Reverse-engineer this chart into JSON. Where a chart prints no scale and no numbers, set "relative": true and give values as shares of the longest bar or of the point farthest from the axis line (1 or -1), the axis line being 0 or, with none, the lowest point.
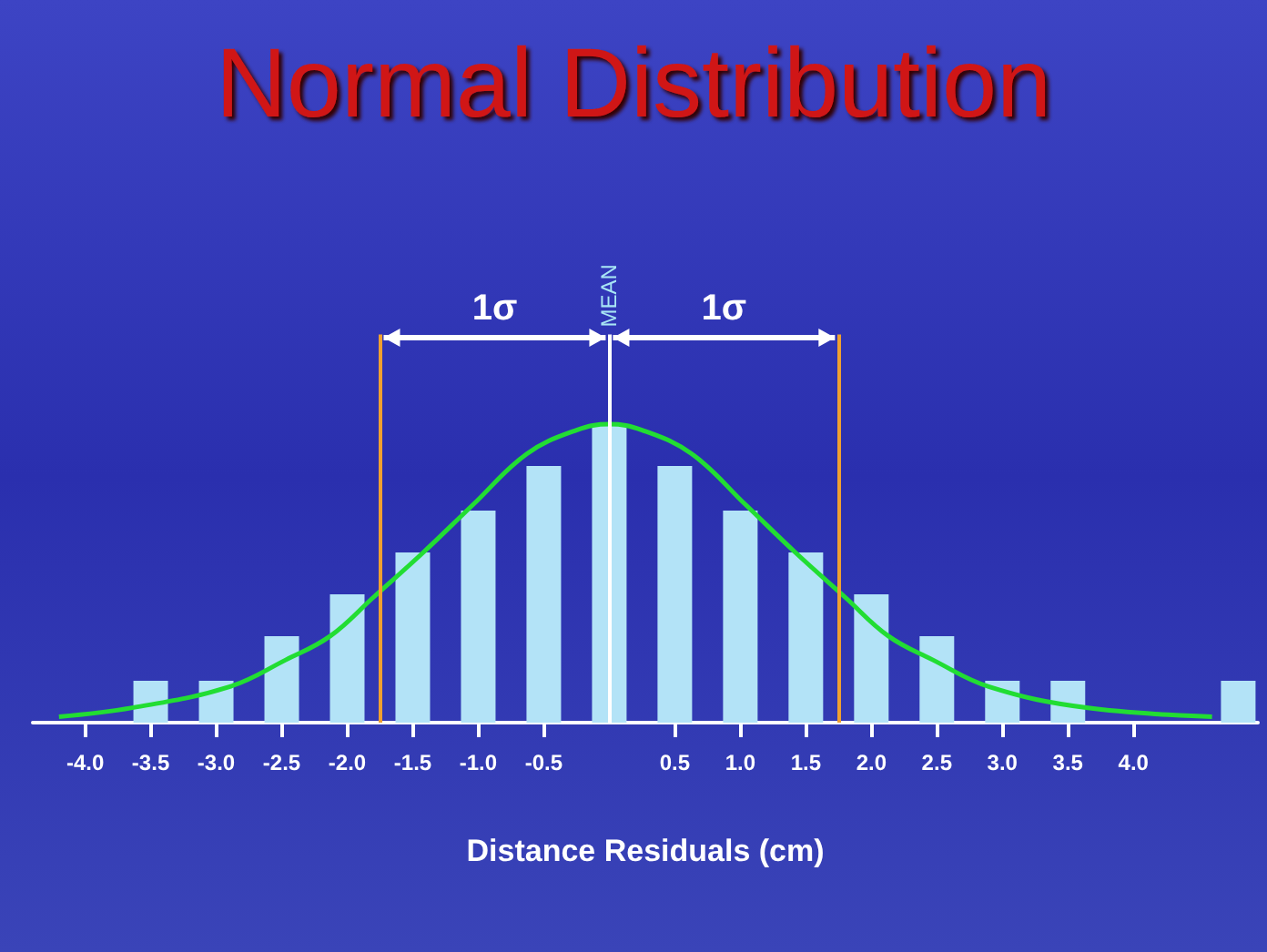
{
  "chart_data": {
    "type": "bar",
    "title": "Normal Distribution",
    "xlabel": "Distance Residuals (cm)",
    "relative": true,
    "xlim": [
      -4.4,
      4.95
    ],
    "xticks": [
      {
        "value": -4,
        "label": "-4.0"
      },
      {
        "value": -3.5,
        "label": "-3.5"
      },
      {
        "value": -3,
        "label": "-3.0"
      },
      {
        "value": -2.5,
        "label": "-2.5"
      },
      {
        "value": -2,
        "label": "-2.0"
      },
      {
        "value": -1.5,
        "label": "-1.5"
      },
      {
        "value": -1,
        "label": "-1.0"
      },
      {
        "value": -0.5,
        "label": "-0.5"
      },
      {
        "value": 0.5,
        "label": "0.5"
      },
      {
        "value": 1,
        "label": "1.0"
      },
      {
        "value": 1.5,
        "label": "1.5"
      },
      {
        "value": 2,
        "label": "2.0"
      },
      {
        "value": 2.5,
        "label": "2.5"
      },
      {
        "value": 3,
        "label": "3.0"
      },
      {
        "value": 3.5,
        "label": "3.5"
      },
      {
        "value": 4,
        "label": "4.0"
      }
    ],
    "series": [
      {
        "color": "#b3e3f7",
        "x": [
          -3.5,
          -3,
          -2.5,
          -2,
          -1.5,
          -1,
          -0.5,
          0,
          0.5,
          1,
          1.5,
          2,
          2.5,
          3,
          3.5,
          4.8
        ],
        "values": [
          0.14,
          0.14,
          0.29,
          0.43,
          0.57,
          0.71,
          0.86,
          1,
          0.86,
          0.71,
          0.57,
          0.43,
          0.29,
          0.14,
          0.14,
          0.14
        ]
      },
      {
        "type": "line",
        "color": "#22dd33",
        "x": [
          -4.2,
          -3.64,
          -2.9,
          -2.47,
          -2.13,
          -1.8,
          -1.42,
          -1.04,
          -0.63,
          -0.25,
          0,
          0.25,
          0.63,
          1.04,
          1.42,
          1.8,
          2.13,
          2.47,
          2.9,
          3.64,
          4.6
        ],
        "values": [
          0.02,
          0.05,
          0.12,
          0.21,
          0.29,
          0.42,
          0.57,
          0.73,
          0.9,
          0.98,
          1,
          0.98,
          0.9,
          0.73,
          0.57,
          0.42,
          0.29,
          0.21,
          0.12,
          0.05,
          0.02
        ]
      }
    ],
    "ref_lines": [
      {
        "axis": "x",
        "value": 0,
        "label": "MEAN",
        "color": "#ffffff"
      },
      {
        "axis": "x",
        "value": -1.75,
        "color": "#f0a030"
      },
      {
        "axis": "x",
        "value": 1.75,
        "color": "#f0a030"
      }
    ],
    "annotations": [
      "1σ",
      "1σ"
    ],
    "marker": "none",
    "grid": false
  }
}
